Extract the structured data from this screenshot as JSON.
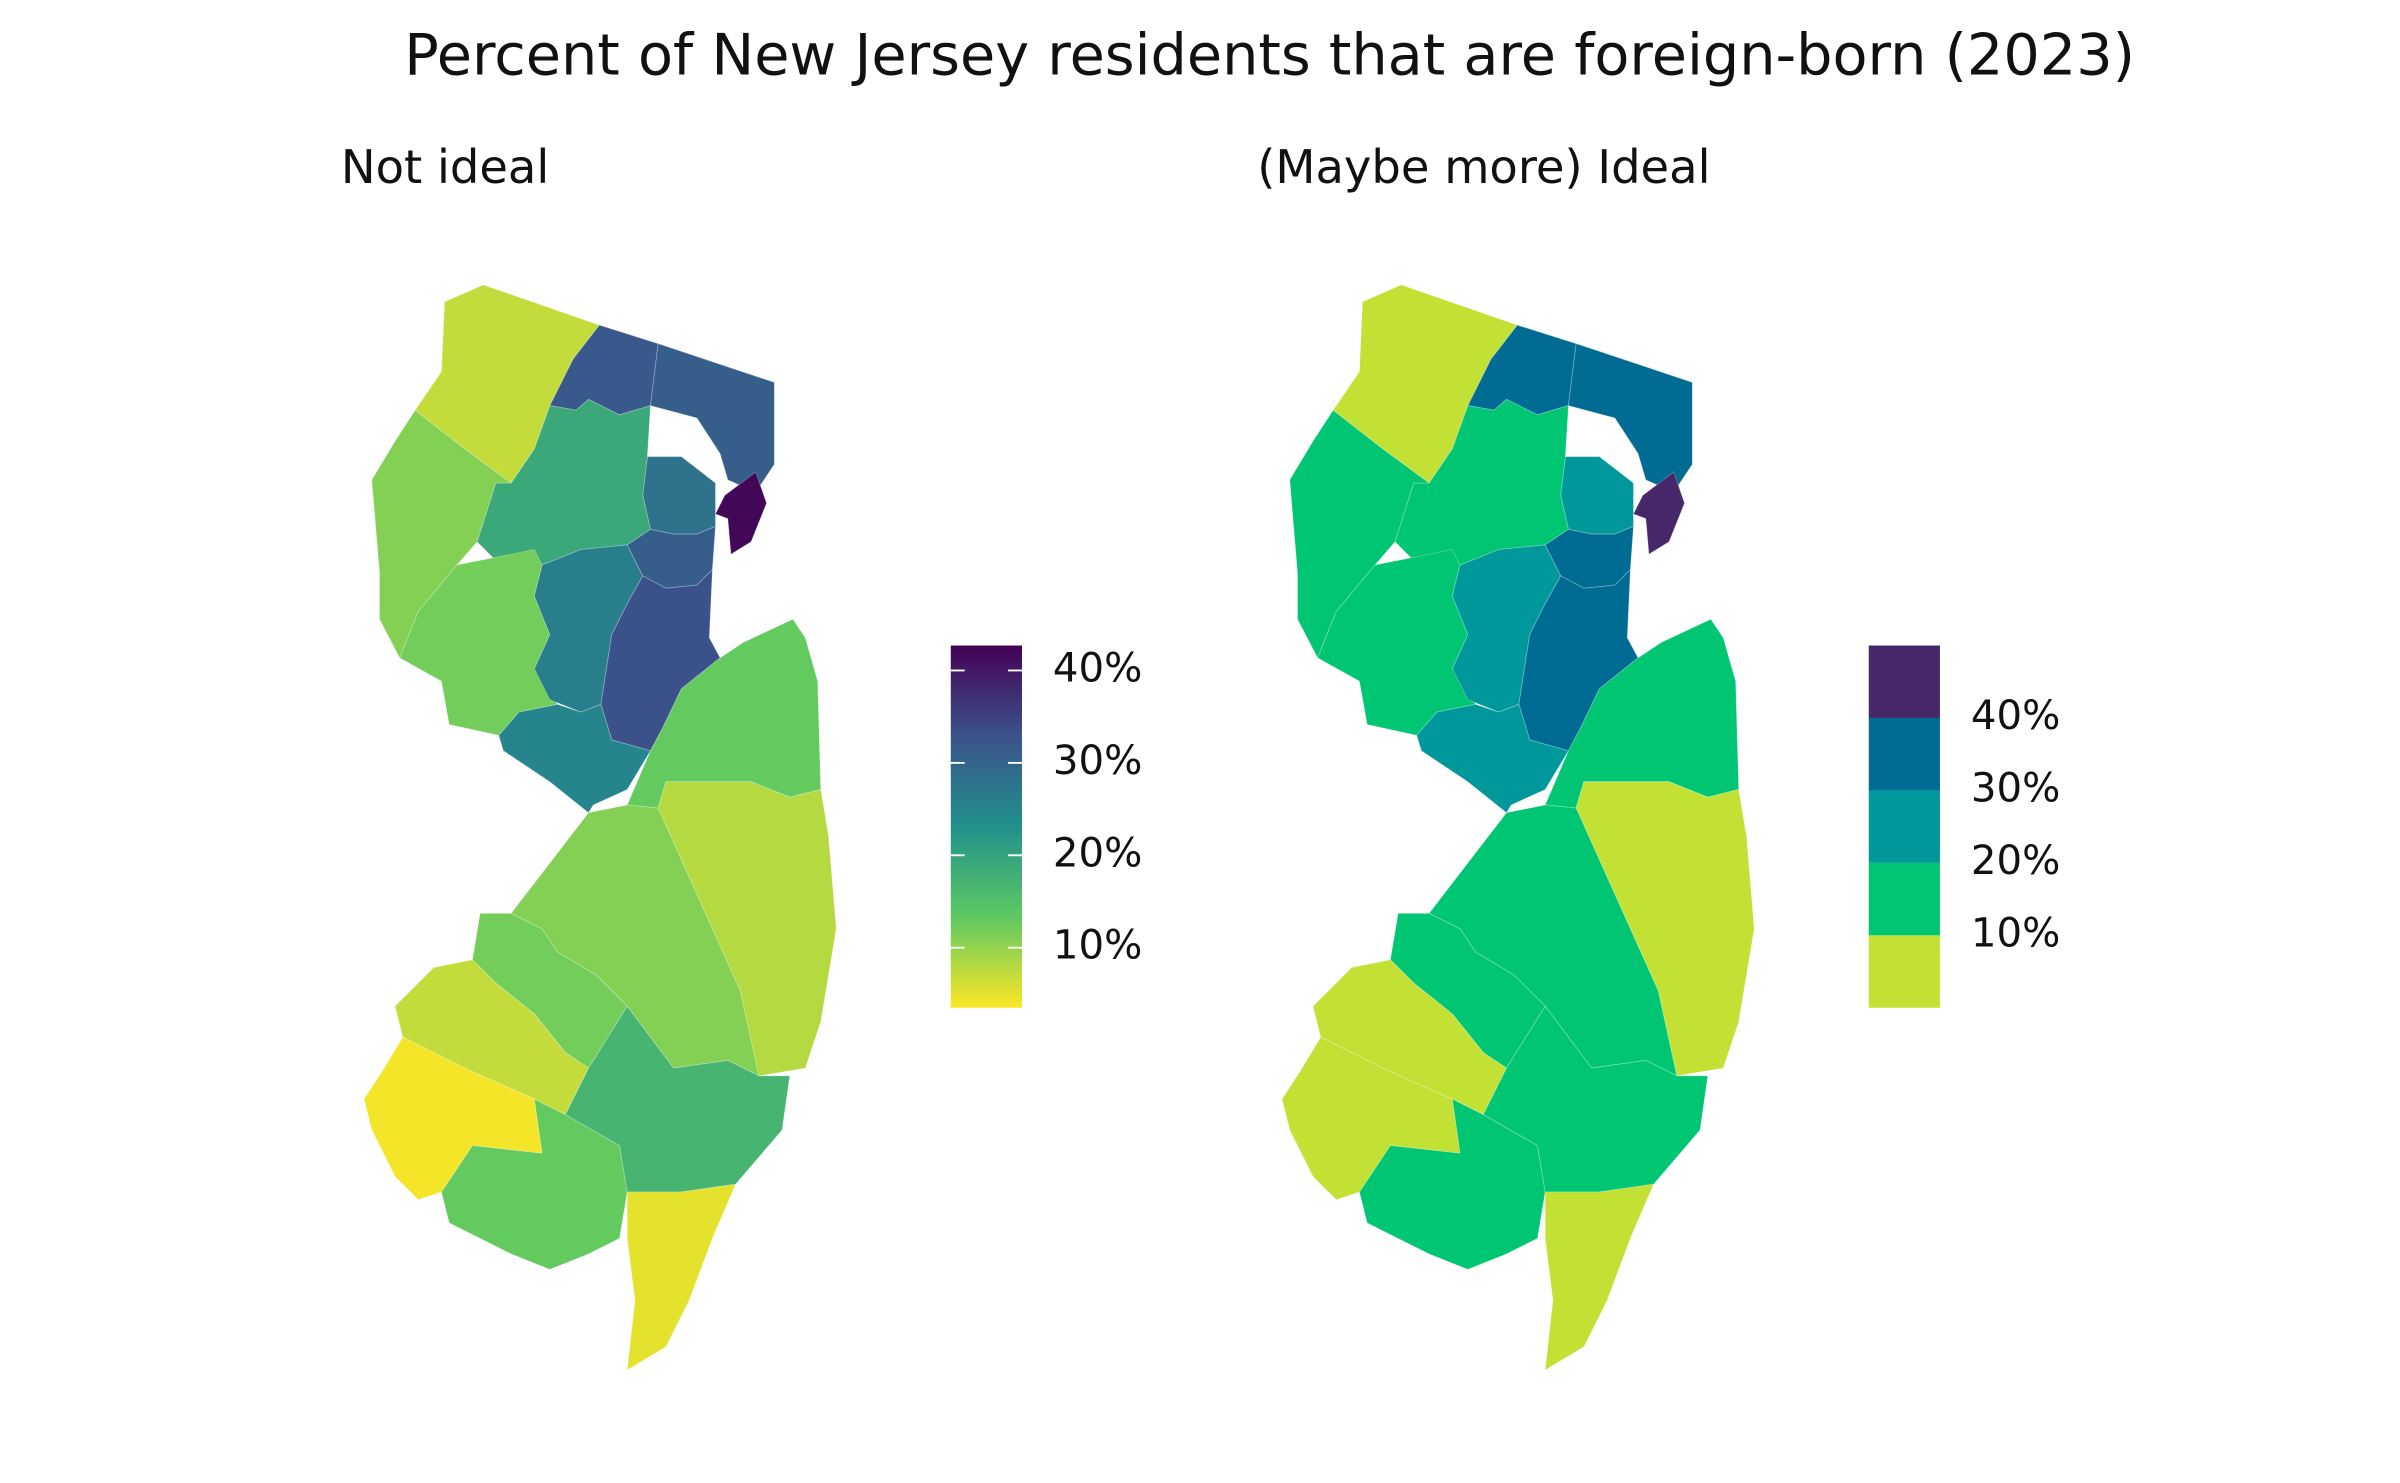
{
  "title": "Percent of New Jersey residents that are foreign-born (2023)",
  "chart_data": [
    {
      "type": "choropleth",
      "subtitle": "Not ideal",
      "values": [
        7,
        32,
        31,
        42,
        28,
        19,
        11,
        12,
        26,
        31,
        33,
        25,
        13,
        8,
        11,
        12,
        7,
        4,
        13,
        17,
        5
      ],
      "legend": {
        "type": "colorbar",
        "lim": [
          3.5,
          42.7
        ],
        "ticks": [
          {
            "value": 10,
            "label": "10%"
          },
          {
            "value": 20,
            "label": "20%"
          },
          {
            "value": 30,
            "label": "30%"
          },
          {
            "value": 40,
            "label": "40%"
          }
        ],
        "colors": [
          "#fde725",
          "#5ec962",
          "#21918c",
          "#3b528b",
          "#440154"
        ]
      }
    },
    {
      "type": "choropleth",
      "subtitle": "(Maybe more) Ideal",
      "values": [
        7,
        32,
        31,
        42,
        28,
        19,
        11,
        12,
        26,
        31,
        33,
        25,
        13,
        8,
        11,
        12,
        7,
        4,
        13,
        17,
        5
      ],
      "legend": {
        "type": "bins",
        "lim": [
          3.5,
          42.7
        ],
        "ticks": [
          {
            "value": 10,
            "label": "10%"
          },
          {
            "value": 20,
            "label": "20%"
          },
          {
            "value": 30,
            "label": "30%"
          },
          {
            "value": 40,
            "label": "40%"
          }
        ],
        "colors": [
          "#c3e034",
          "#00c573",
          "#00989a",
          "#006b93",
          "#46276a"
        ]
      }
    }
  ]
}
